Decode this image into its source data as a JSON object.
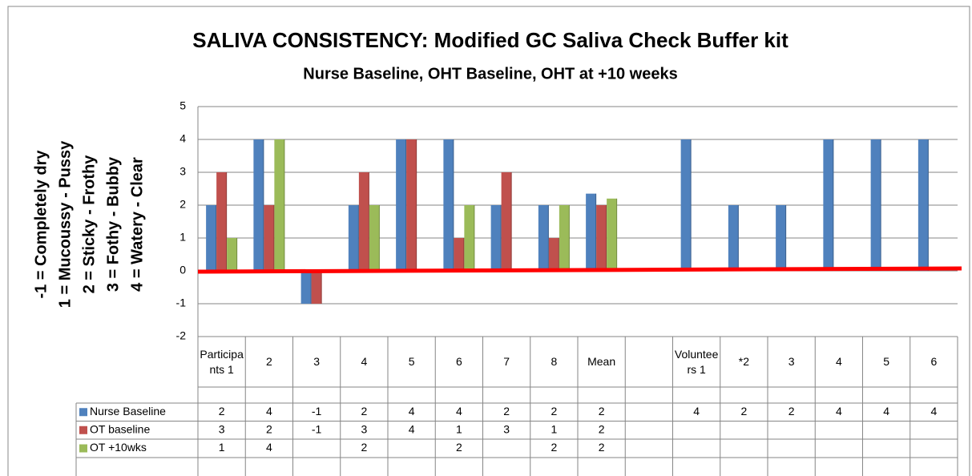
{
  "chart_data": {
    "type": "bar",
    "title": "SALIVA CONSISTENCY:  Modified GC Saliva Check Buffer kit",
    "subtitle": "Nurse Baseline, OHT Baseline, OHT at +10 weeks",
    "y_label": [
      "-1 = Completely  dry",
      "1 = Mucoussy  -  Pussy",
      "2 = Sticky  - Frothy",
      "3 = Fothy  - Bubby",
      "4 = Watery  - Clear"
    ],
    "categories": [
      "Participants 1",
      "2",
      "3",
      "4",
      "5",
      "6",
      "7",
      "8",
      "Mean",
      null,
      "Volunteers 1",
      "*2",
      "3",
      "4",
      "5",
      "6"
    ],
    "series": [
      {
        "name": "Nurse Baseline",
        "color": "#4f81bd",
        "values": [
          2,
          4,
          -1,
          2,
          4,
          4,
          2,
          2,
          2.35,
          null,
          4,
          2,
          2,
          4,
          4,
          4
        ],
        "value_labels": [
          "2",
          "4",
          "-1",
          "2",
          "4",
          "4",
          "2",
          "2",
          "2",
          null,
          "4",
          "2",
          "2",
          "4",
          "4",
          "4"
        ]
      },
      {
        "name": "OT baseline",
        "color": "#c0504d",
        "values": [
          3,
          2,
          -1,
          3,
          4,
          1,
          3,
          1,
          2,
          null,
          null,
          null,
          null,
          null,
          null,
          null
        ],
        "value_labels": [
          "3",
          "2",
          "-1",
          "3",
          "4",
          "1",
          "3",
          "1",
          "2",
          null,
          null,
          null,
          null,
          null,
          null,
          null
        ]
      },
      {
        "name": "OT +10wks",
        "color": "#9bbb59",
        "values": [
          1,
          4,
          null,
          2,
          null,
          2,
          null,
          2,
          2.2,
          null,
          null,
          null,
          null,
          null,
          null,
          null
        ],
        "value_labels": [
          "1",
          "4",
          null,
          "2",
          null,
          "2",
          null,
          "2",
          "2",
          null,
          null,
          null,
          null,
          null,
          null,
          null
        ]
      }
    ],
    "ylim": [
      -2,
      5
    ],
    "yticks": [
      -2,
      -1,
      0,
      1,
      2,
      3,
      4,
      5
    ],
    "grid": true
  }
}
